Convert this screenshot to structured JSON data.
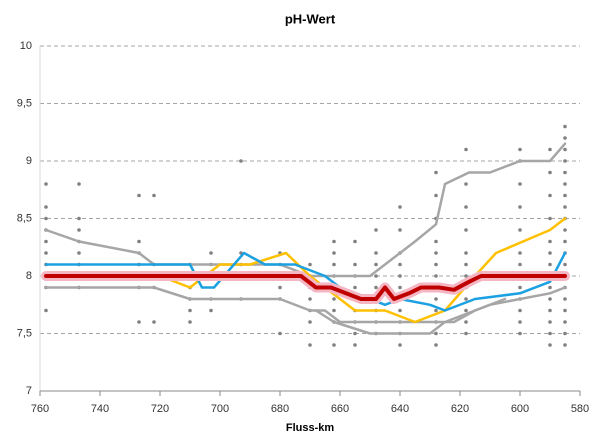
{
  "chart_data": {
    "type": "line",
    "title": "pH-Wert",
    "x_label": "Fluss-km",
    "xlim": [
      760,
      580
    ],
    "xticks": [
      760,
      740,
      720,
      700,
      680,
      660,
      640,
      620,
      600,
      580
    ],
    "ylim": [
      7,
      10
    ],
    "yticks": [
      7,
      {
        "value": 7.5,
        "label": "7,5"
      },
      8,
      {
        "value": 8.5,
        "label": "8,5"
      },
      9,
      {
        "value": 9.5,
        "label": "9,5"
      },
      10
    ],
    "grid": true,
    "points": {
      "color": "#808080",
      "x": [
        758,
        758,
        758,
        758,
        758,
        758,
        758,
        758,
        758,
        758,
        747,
        747,
        747,
        747,
        747,
        747,
        747,
        747,
        727,
        727,
        727,
        727,
        727,
        727,
        727,
        722,
        722,
        722,
        722,
        710,
        710,
        710,
        710,
        710,
        710,
        703,
        703,
        703,
        703,
        703,
        693,
        693,
        693,
        693,
        693,
        680,
        680,
        680,
        680,
        680,
        680,
        670,
        670,
        670,
        670,
        670,
        670,
        670,
        662,
        662,
        662,
        662,
        662,
        662,
        662,
        662,
        662,
        655,
        655,
        655,
        655,
        655,
        655,
        655,
        655,
        655,
        648,
        648,
        648,
        648,
        648,
        648,
        648,
        648,
        648,
        640,
        640,
        640,
        640,
        640,
        640,
        640,
        640,
        640,
        640,
        640,
        628,
        628,
        628,
        628,
        628,
        628,
        628,
        628,
        628,
        628,
        628,
        628,
        628,
        618,
        618,
        618,
        618,
        618,
        618,
        618,
        618,
        618,
        618,
        618,
        618,
        600,
        600,
        600,
        600,
        600,
        600,
        600,
        600,
        600,
        600,
        600,
        600,
        600,
        590,
        590,
        590,
        590,
        590,
        590,
        590,
        590,
        590,
        590,
        590,
        590,
        590,
        590,
        585,
        585,
        585,
        585,
        585,
        585,
        585,
        585,
        585,
        585,
        585,
        585,
        585,
        585,
        585,
        585,
        585,
        585,
        585,
        585
      ],
      "values": [
        7.7,
        7.9,
        8,
        8.1,
        8.2,
        8.3,
        8.4,
        8.5,
        8.6,
        8.8,
        7.9,
        8,
        8.1,
        8.2,
        8.3,
        8.4,
        8.5,
        8.8,
        7.6,
        7.9,
        8,
        8.1,
        8.2,
        8.3,
        8.7,
        7.6,
        7.9,
        8.1,
        8.7,
        7.6,
        7.7,
        7.8,
        7.9,
        8,
        8.1,
        7.7,
        7.8,
        8,
        8.1,
        8.2,
        7.8,
        8,
        8.1,
        8.2,
        9,
        7.5,
        7.8,
        7.9,
        8,
        8.1,
        8.2,
        7.4,
        7.6,
        7.7,
        7.8,
        7.9,
        8,
        8.1,
        7.4,
        7.6,
        7.7,
        7.8,
        7.9,
        8,
        8.1,
        8.2,
        8.3,
        7.4,
        7.5,
        7.6,
        7.7,
        7.8,
        7.9,
        8,
        8.1,
        8.3,
        7.5,
        7.6,
        7.7,
        7.8,
        7.9,
        8,
        8.1,
        8.2,
        8.4,
        7.4,
        7.5,
        7.6,
        7.7,
        7.8,
        7.9,
        8,
        8.1,
        8.2,
        8.4,
        8.6,
        7.4,
        7.5,
        7.6,
        7.7,
        7.8,
        7.9,
        8,
        8.1,
        8.2,
        8.3,
        8.5,
        8.7,
        8.9,
        7.5,
        7.6,
        7.7,
        7.8,
        7.9,
        8,
        8.1,
        8.2,
        8.4,
        8.6,
        8.8,
        9.1,
        7.5,
        7.6,
        7.7,
        7.8,
        7.9,
        8,
        8.1,
        8.2,
        8.4,
        8.6,
        8.8,
        9,
        9.1,
        7.4,
        7.5,
        7.6,
        7.7,
        7.8,
        7.9,
        8,
        8.1,
        8.2,
        8.3,
        8.5,
        8.7,
        8.9,
        9.1,
        7.4,
        7.5,
        7.6,
        7.7,
        7.8,
        7.9,
        8,
        8.1,
        8.2,
        8.3,
        8.4,
        8.5,
        8.6,
        8.7,
        8.8,
        8.9,
        9,
        9.1,
        9.2,
        9.3
      ]
    },
    "series": [
      {
        "color": "#a6a6a6",
        "width": 2.5,
        "x": [
          758,
          747,
          727,
          722,
          710,
          700,
          690,
          680,
          670,
          660,
          650,
          645,
          640,
          635,
          628,
          625,
          617,
          610,
          600,
          590,
          585
        ],
        "values": [
          8.4,
          8.3,
          8.2,
          8.1,
          8.1,
          8.1,
          8.1,
          8.1,
          8.0,
          8.0,
          8.0,
          8.1,
          8.2,
          8.3,
          8.45,
          8.8,
          8.9,
          8.9,
          9.0,
          9.0,
          9.15
        ]
      },
      {
        "color": "#a6a6a6",
        "width": 2.5,
        "x": [
          758,
          722,
          710,
          700,
          690,
          680,
          670,
          665,
          660,
          650,
          640,
          630,
          622,
          615,
          610,
          600,
          590,
          585
        ],
        "values": [
          7.9,
          7.9,
          7.8,
          7.8,
          7.8,
          7.8,
          7.7,
          7.7,
          7.6,
          7.6,
          7.6,
          7.6,
          7.6,
          7.7,
          7.75,
          7.8,
          7.85,
          7.9
        ]
      },
      {
        "color": "#a6a6a6",
        "width": 2.5,
        "x": [
          668,
          662,
          650,
          630,
          625,
          615,
          605
        ],
        "values": [
          7.7,
          7.6,
          7.5,
          7.5,
          7.6,
          7.7,
          7.8
        ]
      },
      {
        "color": "#ffc000",
        "width": 2.5,
        "x": [
          720,
          710,
          700,
          690,
          678,
          670,
          660,
          655,
          645,
          635,
          625,
          615,
          608,
          590,
          585
        ],
        "values": [
          8.0,
          7.9,
          8.1,
          8.1,
          8.2,
          8.0,
          7.8,
          7.7,
          7.7,
          7.6,
          7.7,
          8.0,
          8.2,
          8.4,
          8.5
        ]
      },
      {
        "color": "#1ba1e2",
        "width": 2.5,
        "x": [
          758,
          720,
          710,
          706,
          702,
          692,
          685,
          675,
          665,
          655,
          650,
          645,
          640,
          630,
          625,
          615,
          600,
          590,
          585
        ],
        "values": [
          8.1,
          8.1,
          8.1,
          7.9,
          7.9,
          8.2,
          8.1,
          8.1,
          8.0,
          7.8,
          7.8,
          7.75,
          7.8,
          7.75,
          7.7,
          7.8,
          7.85,
          7.95,
          8.2
        ]
      },
      {
        "color": "#c00000",
        "halo_color": "#f4b6c2",
        "width": 4,
        "x": [
          758,
          680,
          673,
          668,
          663,
          658,
          653,
          648,
          645,
          642,
          637,
          633,
          627,
          622,
          617,
          613,
          585
        ],
        "values": [
          8,
          8,
          8,
          7.9,
          7.9,
          7.85,
          7.8,
          7.8,
          7.9,
          7.8,
          7.85,
          7.9,
          7.9,
          7.88,
          7.95,
          8,
          8
        ]
      }
    ]
  }
}
